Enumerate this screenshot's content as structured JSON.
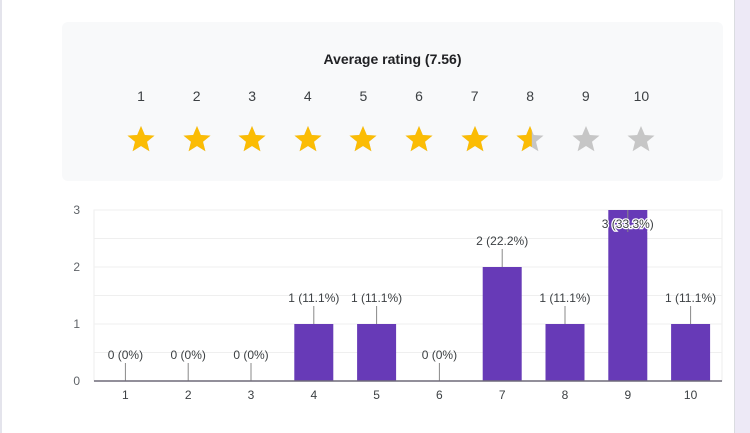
{
  "rating_summary": {
    "title": "Average rating (7.56)",
    "average": 7.56,
    "scale": [
      "1",
      "2",
      "3",
      "4",
      "5",
      "6",
      "7",
      "8",
      "9",
      "10"
    ],
    "colors": {
      "filled": "#fbbc04",
      "empty": "#c6c6c6"
    }
  },
  "chart_data": {
    "type": "bar",
    "categories": [
      "1",
      "2",
      "3",
      "4",
      "5",
      "6",
      "7",
      "8",
      "9",
      "10"
    ],
    "values": [
      0,
      0,
      0,
      1,
      1,
      0,
      2,
      1,
      3,
      1
    ],
    "labels": [
      "0 (0%)",
      "0 (0%)",
      "0 (0%)",
      "1 (11.1%)",
      "1 (11.1%)",
      "0 (0%)",
      "2 (22.2%)",
      "1 (11.1%)",
      "3 (33.3%)",
      "1 (11.1%)"
    ],
    "yticks": [
      "0",
      "1",
      "2",
      "3"
    ],
    "ylim": [
      0,
      3
    ],
    "xlabel": "",
    "ylabel": "",
    "title": "",
    "grid": true,
    "bar_color": "#673ab7"
  }
}
